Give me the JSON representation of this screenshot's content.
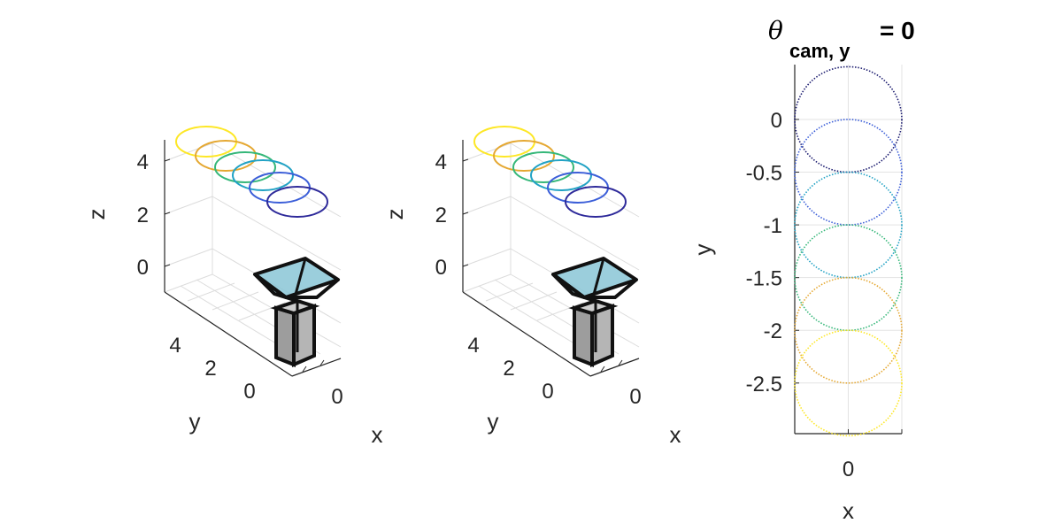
{
  "chart_data": [
    {
      "type": "3d-wireframe",
      "title": "",
      "xlabel": "x",
      "ylabel": "y",
      "zlabel": "z",
      "x_ticks": [
        "0"
      ],
      "y_ticks": [
        "4",
        "2",
        "0"
      ],
      "z_ticks": [
        "4",
        "2",
        "0"
      ],
      "grid": true,
      "circles": {
        "count": 6,
        "radius": 0.5,
        "z": 4.5,
        "colors": [
          "#fde725",
          "#e5a832",
          "#35b779",
          "#21a2c4",
          "#3b5ed8",
          "#2e2a9a"
        ]
      },
      "camera_body_color": "#8ac6d6"
    },
    {
      "type": "3d-wireframe",
      "title": "",
      "xlabel": "x",
      "ylabel": "y",
      "zlabel": "z",
      "x_ticks": [
        "0"
      ],
      "y_ticks": [
        "4",
        "2",
        "0"
      ],
      "z_ticks": [
        "4",
        "2",
        "0"
      ],
      "grid": true,
      "circles": {
        "count": 6,
        "radius": 0.5,
        "z": 4.5,
        "colors": [
          "#fde725",
          "#e5a832",
          "#35b779",
          "#21a2c4",
          "#3b5ed8",
          "#2e2a9a"
        ]
      },
      "camera_body_color": "#8ac6d6"
    },
    {
      "type": "scatter",
      "title_symbol": "θ",
      "title_subscript": "cam, y",
      "title_suffix": "= 0",
      "xlabel": "x",
      "ylabel": "y",
      "x_ticks": [
        0
      ],
      "y_ticks": [
        0,
        -0.5,
        -1,
        -1.5,
        -2,
        -2.5
      ],
      "xlim": [
        -0.5,
        0.5
      ],
      "ylim": [
        -2.98,
        0.52
      ],
      "grid": true,
      "series": [
        {
          "center": [
            0,
            0
          ],
          "radius": 0.5,
          "color": "#1a1a6e"
        },
        {
          "center": [
            0,
            -0.5
          ],
          "radius": 0.5,
          "color": "#3b5ed8"
        },
        {
          "center": [
            0,
            -1
          ],
          "radius": 0.5,
          "color": "#21a2c4"
        },
        {
          "center": [
            0,
            -1.5
          ],
          "radius": 0.5,
          "color": "#35b779"
        },
        {
          "center": [
            0,
            -2
          ],
          "radius": 0.5,
          "color": "#e5a832"
        },
        {
          "center": [
            0,
            -2.5
          ],
          "radius": 0.5,
          "color": "#fde725"
        }
      ]
    }
  ]
}
